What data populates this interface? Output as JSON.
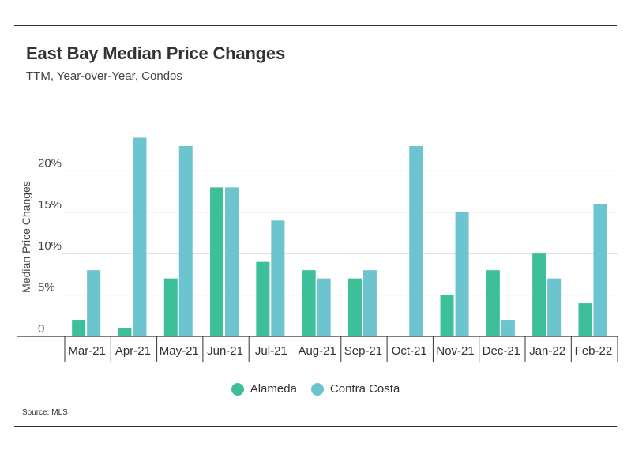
{
  "header": {
    "title": "East Bay Median Price Changes",
    "subtitle": "TTM, Year-over-Year, Condos"
  },
  "footer": {
    "source": "Source:  MLS"
  },
  "colors": {
    "alameda": "#3dbf9a",
    "contra_costa": "#6cc4cf",
    "grid": "#d9d9d9",
    "axis": "#333333"
  },
  "chart_data": {
    "type": "bar",
    "title": "East Bay Median Price Changes",
    "subtitle": "TTM, Year-over-Year, Condos",
    "xlabel": "",
    "ylabel": "Median Price Changes",
    "ylim": [
      0,
      25
    ],
    "yticks": [
      0,
      5,
      10,
      15,
      20
    ],
    "ytick_labels": [
      "0",
      "5%",
      "10%",
      "15%",
      "20%"
    ],
    "grid": true,
    "legend_position": "bottom-center",
    "categories": [
      "Mar-21",
      "Apr-21",
      "May-21",
      "Jun-21",
      "Jul-21",
      "Aug-21",
      "Sep-21",
      "Oct-21",
      "Nov-21",
      "Dec-21",
      "Jan-22",
      "Feb-22"
    ],
    "series": [
      {
        "name": "Alameda",
        "color": "#3dbf9a",
        "values": [
          2,
          1,
          7,
          18,
          9,
          8,
          7,
          0,
          5,
          8,
          10,
          4
        ]
      },
      {
        "name": "Contra Costa",
        "color": "#6cc4cf",
        "values": [
          8,
          24,
          23,
          18,
          14,
          7,
          8,
          23,
          15,
          2,
          7,
          16
        ]
      }
    ]
  }
}
